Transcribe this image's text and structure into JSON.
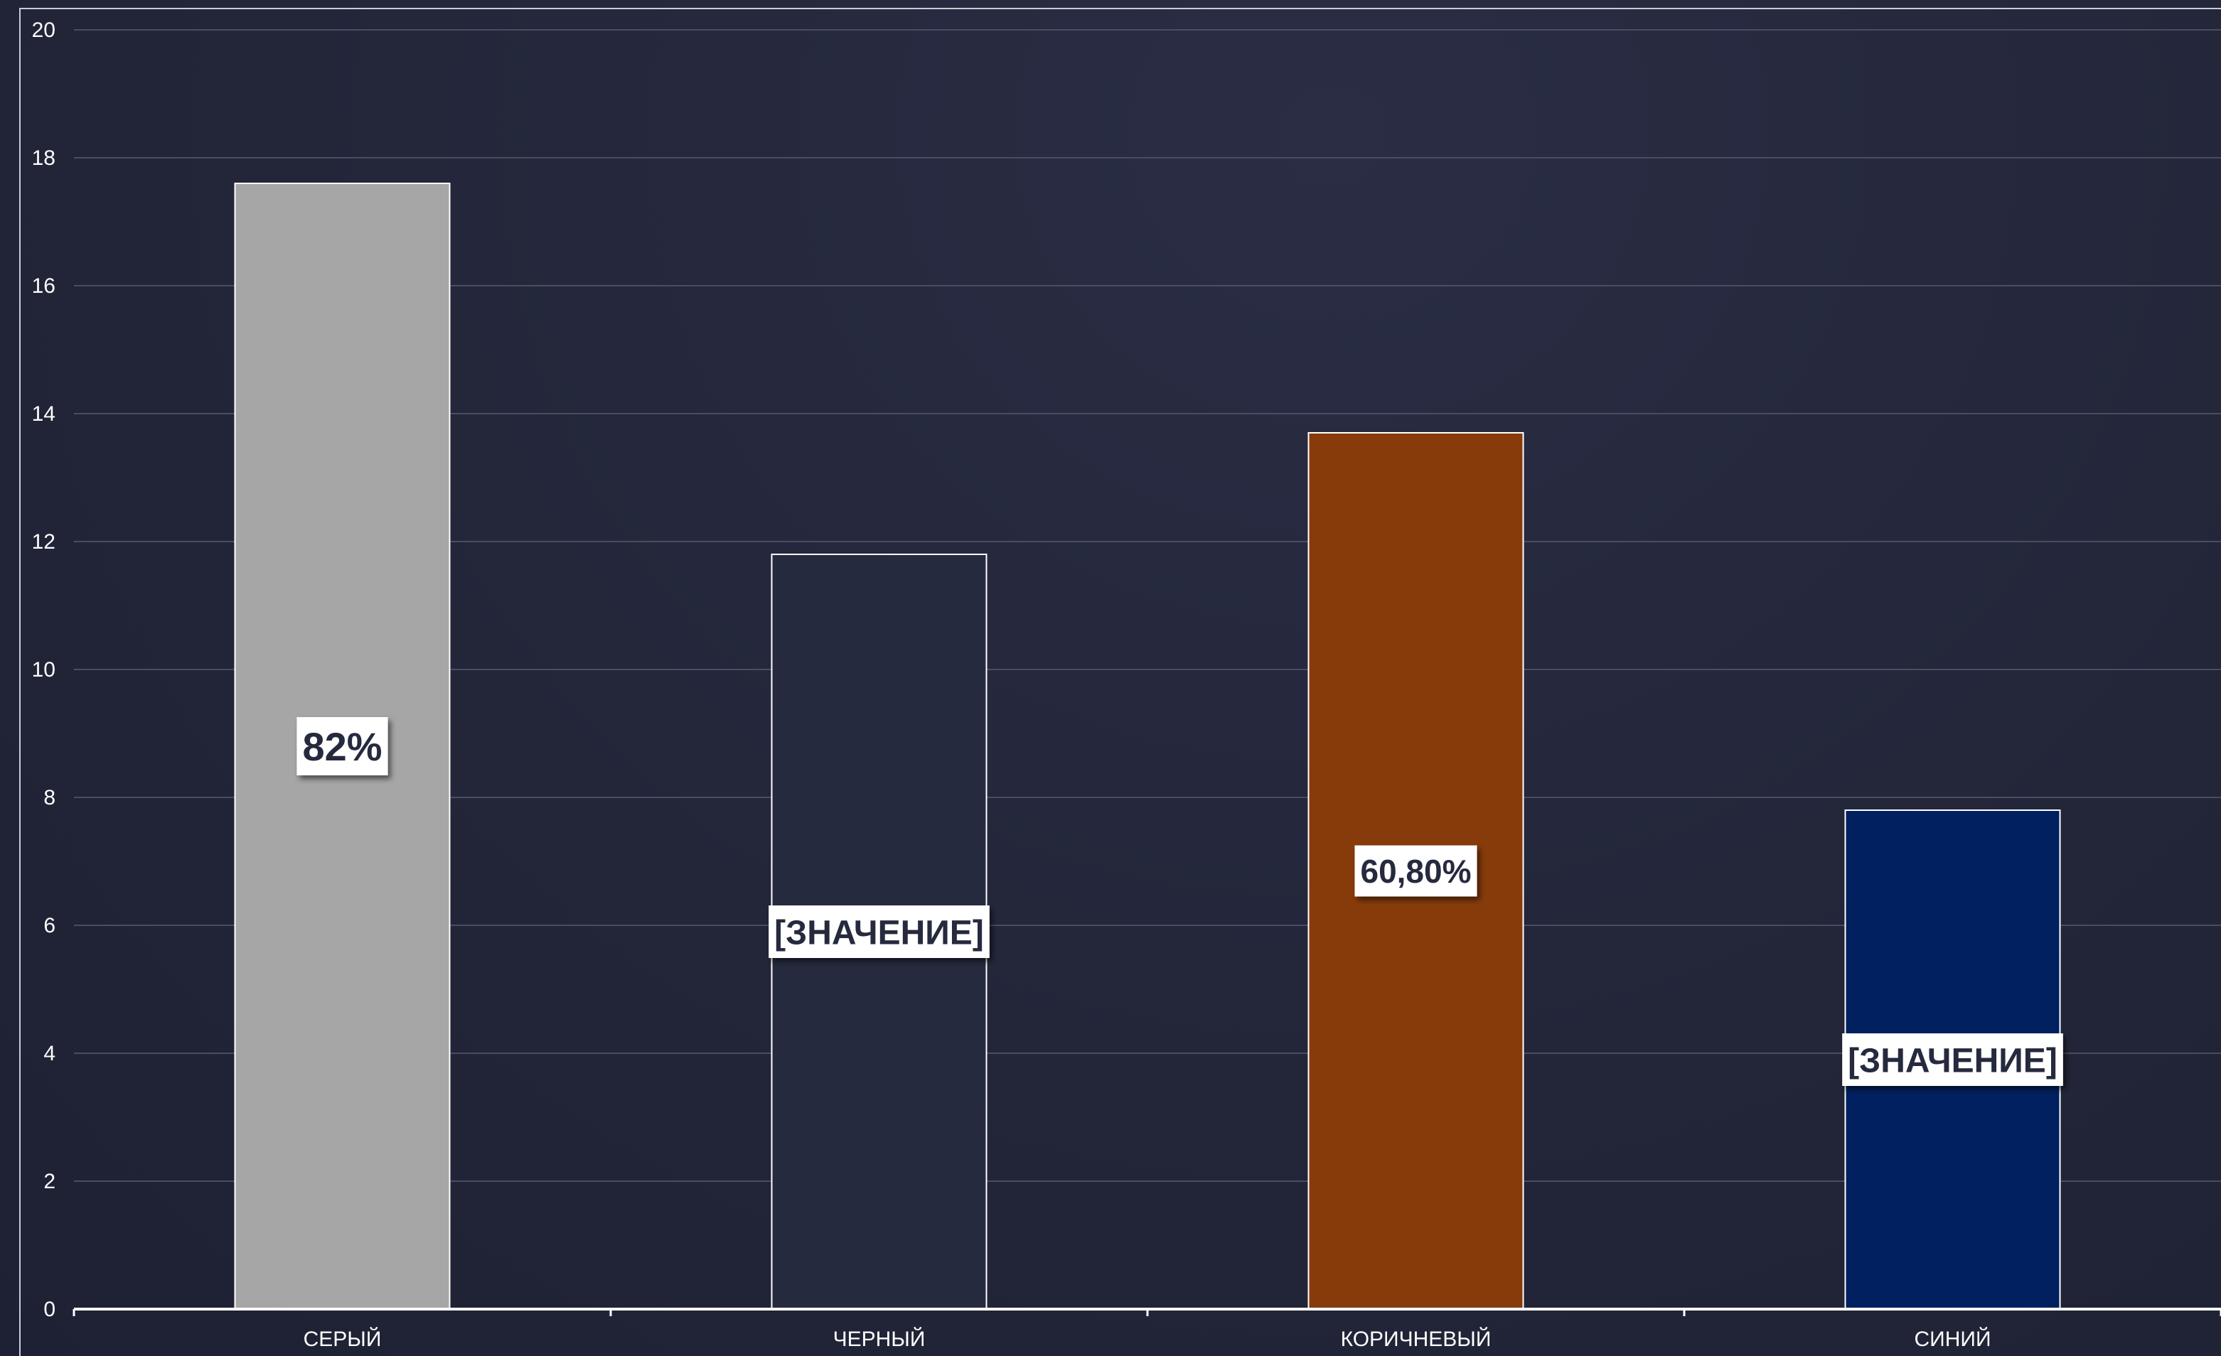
{
  "chart_data": {
    "type": "bar",
    "title": "",
    "xlabel": "",
    "ylabel": "",
    "ylim": [
      0,
      20
    ],
    "yticks": [
      0,
      2,
      4,
      6,
      8,
      10,
      12,
      14,
      16,
      18,
      20
    ],
    "grid": true,
    "categories": [
      "СЕРЫЙ",
      "ЧЕРНЫЙ",
      "КОРИЧНЕВЫЙ",
      "СИНИЙ"
    ],
    "values": [
      17.6,
      11.8,
      13.7,
      7.8
    ],
    "data_labels": [
      "82%",
      "[ЗНАЧЕНИЕ]",
      "60,80%",
      "[ЗНАЧЕНИЕ]"
    ],
    "bar_colors": [
      "#a6a6a6",
      "#262a3f",
      "#873b0b",
      "#002060"
    ],
    "colors": {
      "background": "#232639",
      "grid": "#4a4d62",
      "axis": "#ffffff",
      "text": "#ffffff",
      "label_box": "#ffffff",
      "label_text": "#262a3f"
    }
  }
}
